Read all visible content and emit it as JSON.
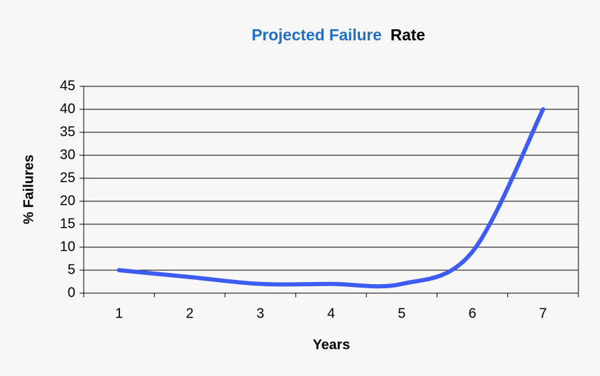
{
  "chart_data": {
    "type": "line",
    "title_parts": [
      {
        "text": "Projected Failure",
        "color": "#1f6fc5"
      },
      {
        "text": "Rate",
        "color": "#000000"
      }
    ],
    "x_label": "Years",
    "y_label": "% Failures",
    "categories": [
      "1",
      "2",
      "3",
      "4",
      "5",
      "6",
      "7"
    ],
    "series": [
      {
        "name": "% Failures",
        "color": "#3d5cf2",
        "values": [
          5,
          3.5,
          2,
          2,
          2,
          9,
          40
        ]
      }
    ],
    "ylim": [
      0,
      45
    ],
    "yticks": [
      0,
      5,
      10,
      15,
      20,
      25,
      30,
      35,
      40,
      45
    ],
    "grid": true
  }
}
